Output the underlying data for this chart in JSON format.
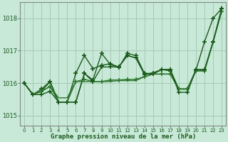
{
  "xlabel": "Graphe pression niveau de la mer (hPa)",
  "background_color": "#c8e8d8",
  "grid_color": "#a8c8b8",
  "ylim": [
    1014.7,
    1018.5
  ],
  "xlim": [
    -0.5,
    23.5
  ],
  "yticks": [
    1015,
    1016,
    1017,
    1018
  ],
  "xticks": [
    0,
    1,
    2,
    3,
    4,
    5,
    6,
    7,
    8,
    9,
    10,
    11,
    12,
    13,
    14,
    15,
    16,
    17,
    18,
    19,
    20,
    21,
    22,
    23
  ],
  "series": [
    {
      "y": [
        1016.0,
        1015.65,
        1015.75,
        1016.05,
        1015.42,
        1015.42,
        1016.3,
        1016.85,
        1016.45,
        1016.55,
        1016.6,
        1016.5,
        1016.85,
        1016.78,
        1016.27,
        1016.32,
        1016.42,
        1016.38,
        1015.82,
        1015.82,
        1016.42,
        1016.42,
        1017.28,
        1018.3
      ],
      "color": "#1a5c1a",
      "lw": 1.0,
      "marker": true
    },
    {
      "y": [
        1016.0,
        1015.65,
        1015.82,
        1016.05,
        1015.42,
        1015.42,
        1015.42,
        1016.3,
        1016.1,
        1016.92,
        1016.58,
        1016.48,
        1016.92,
        1016.85,
        1016.3,
        1016.3,
        1016.42,
        1016.42,
        1015.82,
        1015.82,
        1016.4,
        1017.28,
        1018.0,
        1018.3
      ],
      "color": "#1a5c1a",
      "lw": 1.0,
      "marker": true
    },
    {
      "y": [
        1016.0,
        1015.65,
        1015.75,
        1015.9,
        1015.42,
        1015.42,
        1016.05,
        1016.12,
        1016.05,
        1016.05,
        1016.1,
        1016.1,
        1016.12,
        1016.12,
        1016.2,
        1016.28,
        1016.28,
        1016.28,
        1015.82,
        1015.82,
        1016.38,
        1016.38,
        1017.28,
        1018.22
      ],
      "color": "#2d7a2d",
      "lw": 1.0,
      "marker": true
    },
    {
      "y": [
        1016.0,
        1015.65,
        1015.75,
        1015.9,
        1015.55,
        1015.55,
        1016.05,
        1016.05,
        1016.05,
        1016.05,
        1016.05,
        1016.08,
        1016.08,
        1016.08,
        1016.2,
        1016.28,
        1016.28,
        1016.28,
        1015.82,
        1015.82,
        1016.38,
        1016.38,
        1017.28,
        1018.22
      ],
      "color": "#2d7a2d",
      "lw": 1.0,
      "marker": false
    },
    {
      "y": [
        1016.0,
        1015.65,
        1015.65,
        1015.75,
        1015.42,
        1015.42,
        1015.42,
        1016.3,
        1016.05,
        1016.5,
        1016.5,
        1016.5,
        1016.85,
        1016.78,
        1016.28,
        1016.28,
        1016.42,
        1016.42,
        1015.72,
        1015.72,
        1016.42,
        1016.42,
        1017.28,
        1018.3
      ],
      "color": "#1a5c1a",
      "lw": 1.0,
      "marker": true
    }
  ],
  "marker_style": "+",
  "markersize": 4,
  "markeredgewidth": 1.2
}
